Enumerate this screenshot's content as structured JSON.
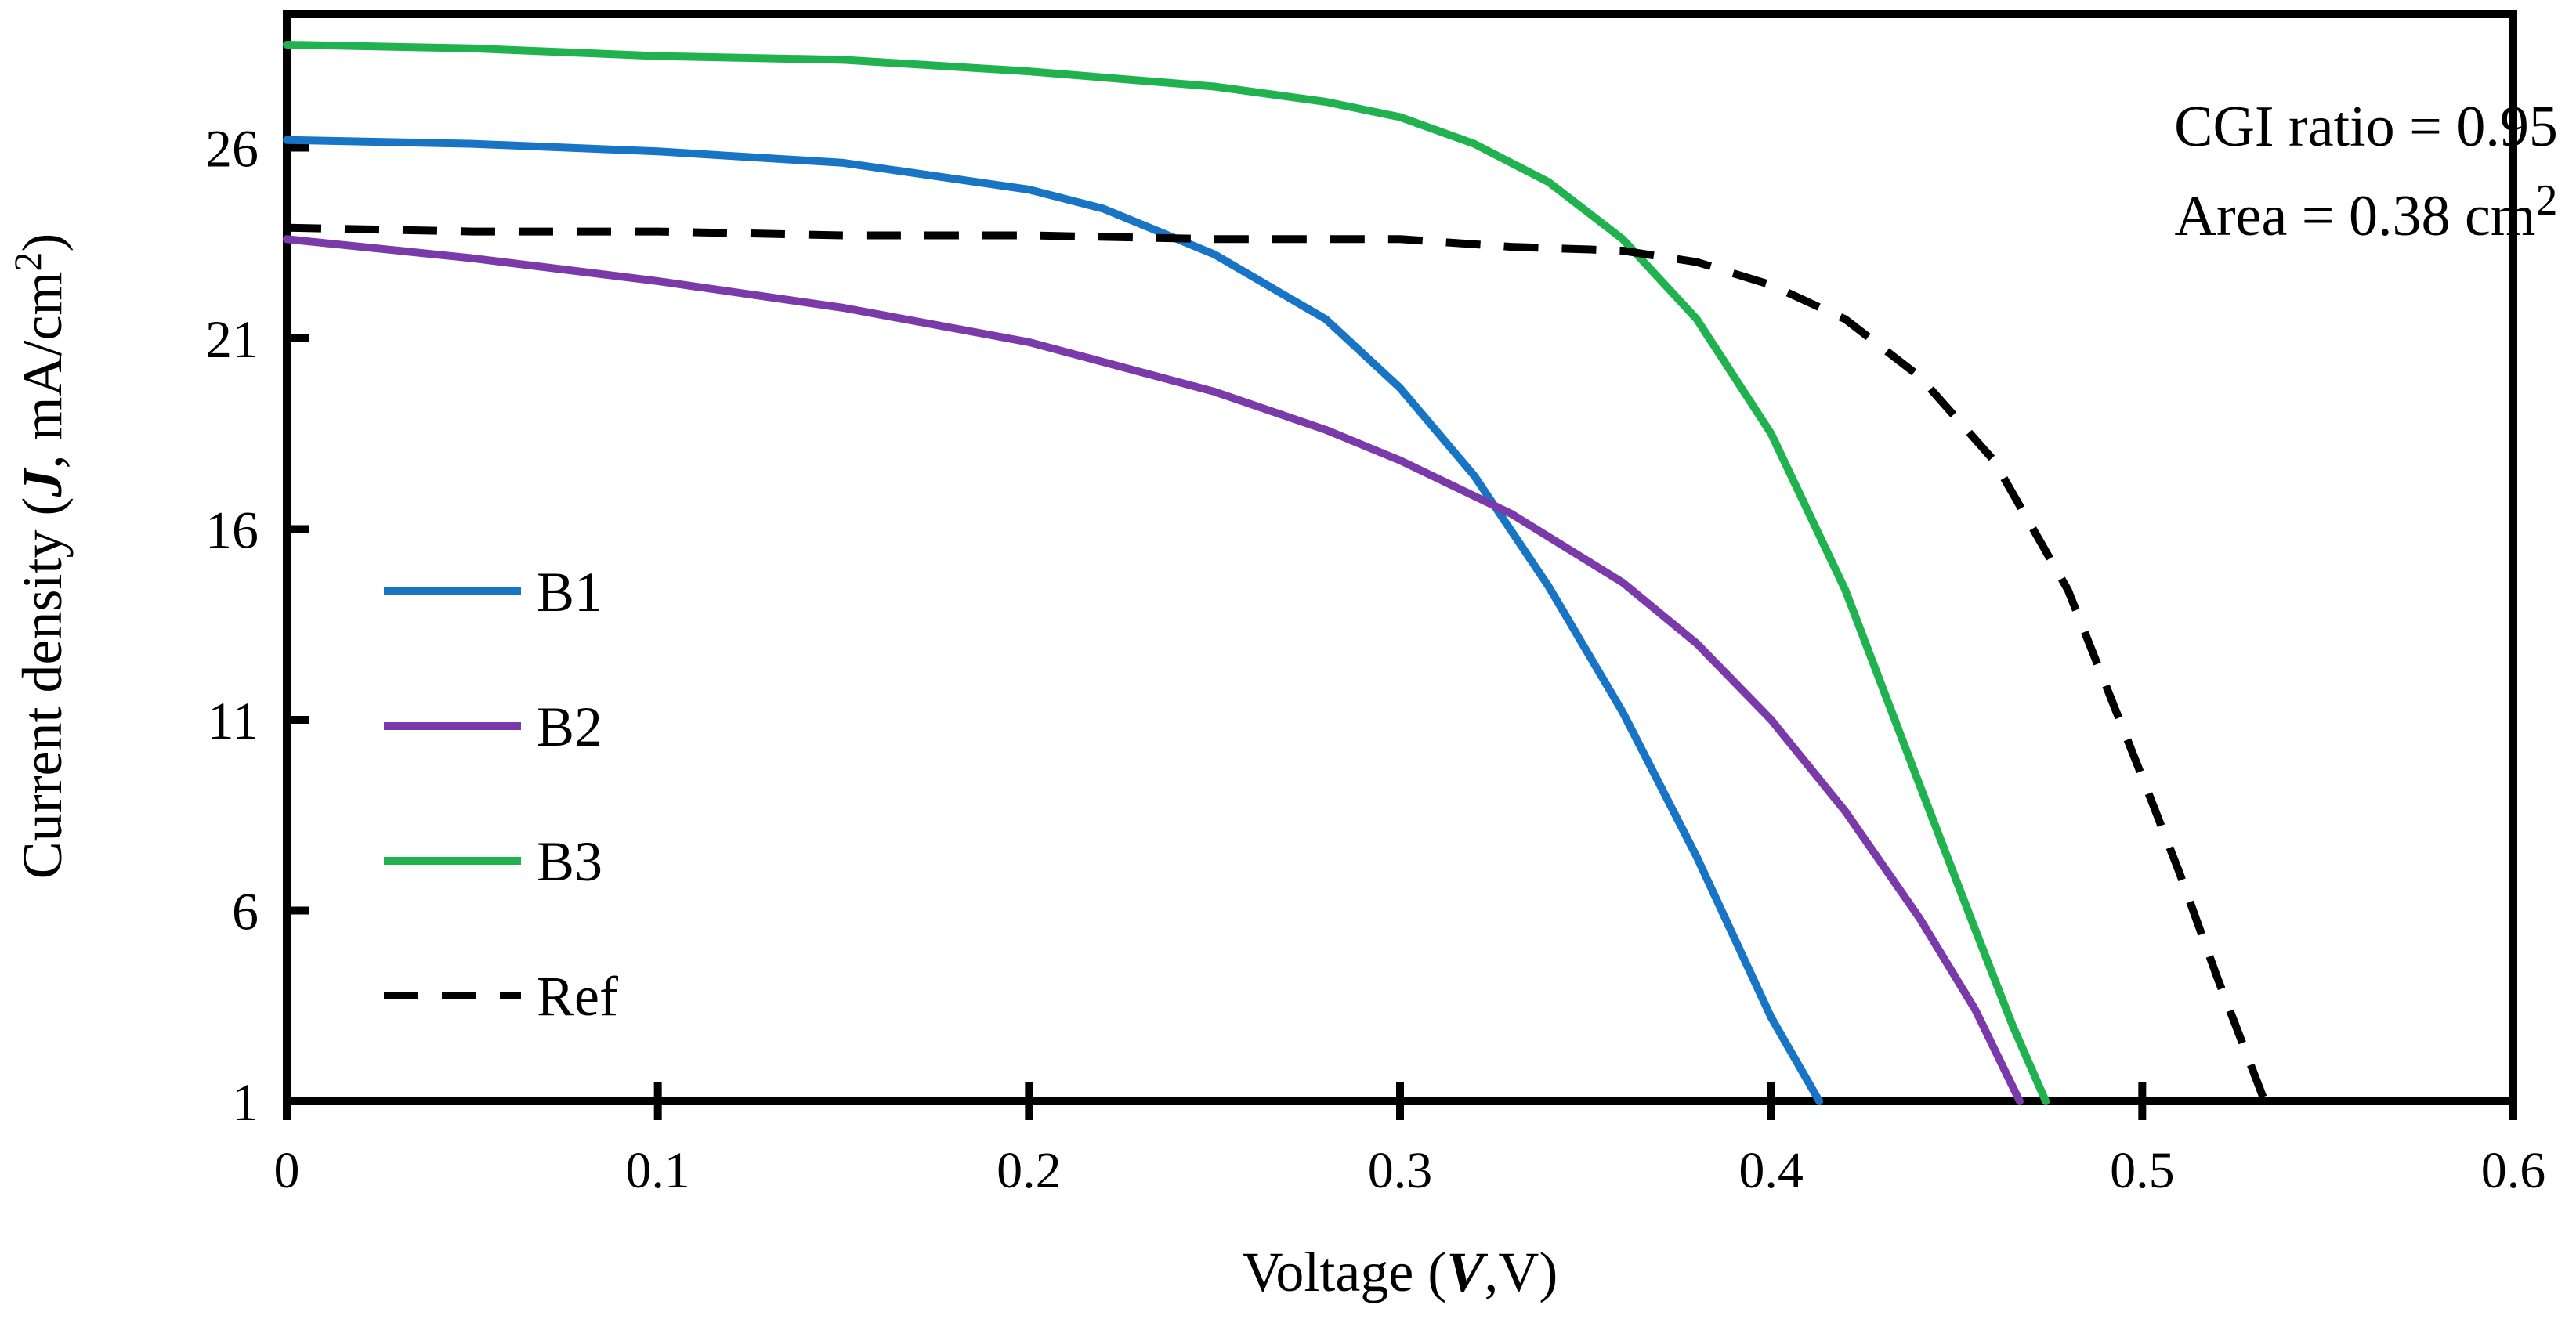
{
  "chart_data": {
    "type": "line",
    "title": "",
    "xlabel": "Voltage (V,V)",
    "xlabel_parts": {
      "pre": "Voltage (",
      "italic": "V",
      "post": ",V)"
    },
    "ylabel": "Current density (J, mA/cm2)",
    "ylabel_parts": {
      "pre": "Current density (",
      "bold_italic": "J",
      "mid": ", mA/cm",
      "sup": "2",
      "post": ")"
    },
    "xlim": [
      0,
      0.6
    ],
    "ylim": [
      1,
      29.5
    ],
    "xticks": [
      0,
      0.1,
      0.2,
      0.3,
      0.4,
      0.5,
      0.6
    ],
    "xtick_labels": [
      "0",
      "0.1",
      "0.2",
      "0.3",
      "0.4",
      "0.5",
      "0.6"
    ],
    "yticks": [
      1,
      6,
      11,
      16,
      21,
      26
    ],
    "ytick_labels": [
      "1",
      "6",
      "11",
      "16",
      "21",
      "26"
    ],
    "grid": false,
    "legend_position": "center-left",
    "annotations": {
      "line1": "CGI ratio = 0.95",
      "line2_pre": "Area = 0.38 cm",
      "line2_sup": "2"
    },
    "series": [
      {
        "name": "B1",
        "color": "#1874c4",
        "dash": false,
        "x": [
          0,
          0.05,
          0.1,
          0.15,
          0.2,
          0.22,
          0.25,
          0.28,
          0.3,
          0.32,
          0.34,
          0.36,
          0.38,
          0.39,
          0.4,
          0.413
        ],
        "y": [
          26.2,
          26.1,
          25.9,
          25.6,
          24.9,
          24.4,
          23.2,
          21.5,
          19.7,
          17.4,
          14.5,
          11.2,
          7.4,
          5.3,
          3.2,
          1.0
        ]
      },
      {
        "name": "B2",
        "color": "#7b3aa9",
        "dash": false,
        "x": [
          0,
          0.05,
          0.1,
          0.15,
          0.2,
          0.25,
          0.28,
          0.3,
          0.33,
          0.36,
          0.38,
          0.4,
          0.42,
          0.44,
          0.455,
          0.467
        ],
        "y": [
          23.6,
          23.1,
          22.5,
          21.8,
          20.9,
          19.6,
          18.6,
          17.8,
          16.4,
          14.6,
          13.0,
          11.0,
          8.6,
          5.8,
          3.4,
          1.0
        ]
      },
      {
        "name": "B3",
        "color": "#1fb24f",
        "dash": false,
        "x": [
          0,
          0.05,
          0.1,
          0.15,
          0.2,
          0.25,
          0.28,
          0.3,
          0.32,
          0.34,
          0.36,
          0.38,
          0.4,
          0.42,
          0.44,
          0.455,
          0.465,
          0.474
        ],
        "y": [
          28.7,
          28.6,
          28.4,
          28.3,
          28.0,
          27.6,
          27.2,
          26.8,
          26.1,
          25.1,
          23.6,
          21.5,
          18.5,
          14.4,
          9.3,
          5.5,
          3.0,
          1.0
        ]
      },
      {
        "name": "Ref",
        "color": "#000000",
        "dash": true,
        "x": [
          0,
          0.05,
          0.1,
          0.15,
          0.2,
          0.25,
          0.3,
          0.33,
          0.36,
          0.38,
          0.4,
          0.42,
          0.44,
          0.46,
          0.48,
          0.5,
          0.51,
          0.52,
          0.533
        ],
        "y": [
          23.9,
          23.8,
          23.8,
          23.7,
          23.7,
          23.6,
          23.6,
          23.4,
          23.3,
          23.0,
          22.4,
          21.5,
          20.0,
          17.8,
          14.4,
          9.5,
          7.0,
          4.3,
          1.0
        ]
      }
    ]
  }
}
